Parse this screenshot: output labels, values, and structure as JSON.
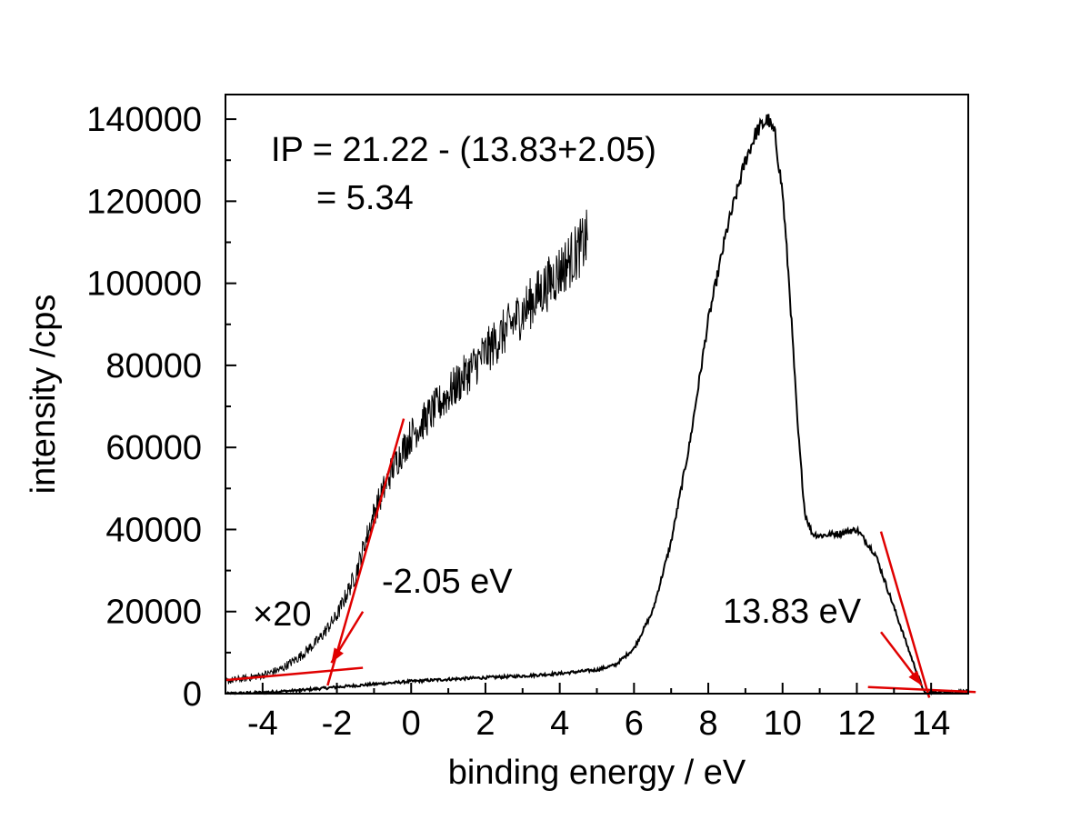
{
  "chart_data": {
    "type": "line",
    "xlabel": "binding energy / eV",
    "ylabel": "intensity /cps",
    "xlim": [
      -5,
      15
    ],
    "ylim": [
      0,
      146000
    ],
    "x_ticks": [
      -4,
      -2,
      0,
      2,
      4,
      6,
      8,
      10,
      12,
      14
    ],
    "x_tick_labels": [
      "-4",
      "-2",
      "0",
      "2",
      "4",
      "6",
      "8",
      "10",
      "12",
      "14"
    ],
    "y_ticks": [
      0,
      20000,
      40000,
      60000,
      80000,
      100000,
      120000,
      140000
    ],
    "y_tick_labels": [
      "0",
      "20000",
      "40000",
      "60000",
      "80000",
      "100000",
      "120000",
      "140000"
    ],
    "grid": false,
    "colors": {
      "spectrum": "#000000",
      "fit_lines": "#e00000"
    },
    "series": [
      {
        "x": [
          -5.0,
          -4.0,
          -3.0,
          -2.0,
          -1.0,
          0.0,
          1.0,
          2.0,
          3.0,
          4.0,
          5.0,
          5.5,
          6.0,
          6.5,
          7.0,
          7.5,
          8.0,
          8.5,
          9.0,
          9.3,
          9.6,
          9.8,
          10.0,
          10.2,
          10.4,
          10.6,
          10.8,
          11.0,
          11.5,
          12.0,
          12.5,
          13.0,
          13.5,
          13.83,
          14.0,
          14.5,
          15.0
        ],
        "y": [
          0,
          300,
          800,
          1600,
          2300,
          3000,
          3500,
          3900,
          4300,
          4900,
          5800,
          7000,
          11000,
          20000,
          37000,
          61000,
          91000,
          113000,
          130000,
          137000,
          140000,
          136000,
          122000,
          97000,
          66000,
          44000,
          39000,
          38500,
          39000,
          40000,
          34000,
          21000,
          8000,
          0,
          300,
          500,
          600
        ]
      },
      {
        "name": "×20",
        "x": [
          -5.0,
          -4.5,
          -4.0,
          -3.5,
          -3.0,
          -2.5,
          -2.0,
          -1.5,
          -1.0,
          -0.5,
          0.0,
          0.5,
          1.0,
          1.5,
          2.0,
          2.5,
          3.0,
          3.5,
          4.0,
          4.5,
          4.75
        ],
        "y": [
          3000,
          3700,
          4500,
          6000,
          9000,
          13000,
          19000,
          29000,
          44000,
          55000,
          63000,
          68000,
          73000,
          78000,
          83000,
          88000,
          93000,
          98000,
          103000,
          108000,
          111000
        ]
      }
    ],
    "annotations": {
      "formula_line1": "IP = 21.22 - (13.83+2.05)",
      "formula_line2": "= 5.34",
      "scale_factor": "×20",
      "left_onset": "-2.05 eV",
      "right_cutoff": "13.83 eV"
    }
  }
}
